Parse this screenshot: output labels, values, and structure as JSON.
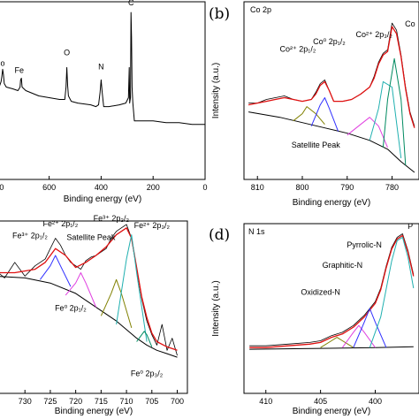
{
  "chart_data": [
    {
      "id": "a",
      "type": "line",
      "panel_label": "",
      "title": "",
      "xlabel": "Binding energy (eV)",
      "ylabel": "",
      "xlim": [
        830,
        0
      ],
      "ylim": [
        0,
        100
      ],
      "xticks": [
        800,
        600,
        400,
        200,
        0
      ],
      "x_tick_labels": [
        "800",
        "600",
        "400",
        "200",
        "0"
      ],
      "series": [
        {
          "name": "",
          "color": "#000000",
          "x": [
            830,
            820,
            800,
            790,
            785,
            782,
            779,
            776,
            773,
            765,
            740,
            720,
            712,
            710,
            707,
            704,
            690,
            640,
            560,
            540,
            535,
            532,
            529,
            526,
            515,
            490,
            440,
            420,
            410,
            404,
            400,
            396,
            390,
            370,
            330,
            305,
            295,
            292,
            290,
            287,
            285,
            283,
            281,
            278,
            272,
            250,
            200,
            150,
            100,
            50,
            0
          ],
          "y": [
            54,
            54,
            53,
            53,
            55,
            58,
            62,
            59,
            54,
            52,
            51,
            50,
            52,
            56,
            57,
            52,
            50,
            47,
            45,
            45,
            52,
            63,
            53,
            47,
            44,
            43,
            42,
            41,
            42,
            49,
            56,
            49,
            41,
            41,
            42,
            43,
            46,
            63,
            43,
            46,
            94,
            80,
            52,
            43,
            33,
            33,
            33,
            32,
            32,
            31,
            31
          ]
        }
      ],
      "annotations": [
        {
          "text": "Co",
          "x": 790,
          "y": 64
        },
        {
          "text": "Fe",
          "x": 715,
          "y": 60
        },
        {
          "text": "O",
          "x": 532,
          "y": 70
        },
        {
          "text": "N",
          "x": 400,
          "y": 62
        },
        {
          "text": "C",
          "x": 285,
          "y": 98
        }
      ]
    },
    {
      "id": "b",
      "type": "line",
      "panel_label": "(b)",
      "title": "Co 2p",
      "xlabel": "Binding energy (eV)",
      "ylabel": "Intensity (a.u.)",
      "xlim": [
        813,
        774
      ],
      "ylim": [
        0,
        100
      ],
      "xticks": [
        810,
        800,
        790,
        780
      ],
      "x_tick_labels": [
        "810",
        "800",
        "790",
        "780"
      ],
      "series": [
        {
          "name": "",
          "role": "raw",
          "color": "#000000",
          "x": [
            812,
            810,
            808,
            806,
            804,
            802,
            800,
            798,
            797,
            796,
            795,
            794,
            793,
            791,
            789,
            787,
            785,
            784,
            783,
            782,
            781,
            780,
            779,
            778,
            777,
            776,
            775
          ],
          "y": [
            43,
            43,
            45,
            46,
            47,
            45,
            44,
            45,
            49,
            54,
            56,
            50,
            44,
            44,
            45,
            48,
            52,
            58,
            66,
            71,
            73,
            88,
            84,
            70,
            52,
            38,
            30
          ]
        },
        {
          "name": "",
          "role": "envelope",
          "color": "#e01010",
          "x": [
            812,
            810,
            808,
            806,
            804,
            802,
            800,
            798,
            797,
            796,
            795,
            794,
            793,
            791,
            789,
            787,
            785,
            784,
            783,
            782,
            781,
            780,
            779,
            778,
            777,
            776,
            775
          ],
          "y": [
            42,
            43,
            44,
            45,
            46,
            45,
            44,
            45,
            48,
            53,
            55,
            50,
            44,
            44,
            45,
            48,
            52,
            57,
            65,
            70,
            72,
            86,
            82,
            69,
            51,
            37,
            29
          ]
        },
        {
          "name": "",
          "role": "background",
          "color": "#000000",
          "x": [
            812,
            805,
            800,
            795,
            790,
            785,
            781,
            778,
            775
          ],
          "y": [
            38,
            35,
            32,
            29,
            26,
            22,
            17,
            10,
            4
          ]
        },
        {
          "name": "",
          "role": "peak",
          "color": "#808000",
          "x": [
            802,
            800,
            799,
            797,
            795
          ],
          "y": [
            33,
            37,
            41,
            37,
            31
          ]
        },
        {
          "name": "",
          "role": "peak",
          "color": "#3030ff",
          "x": [
            798,
            796,
            795,
            794,
            792
          ],
          "y": [
            30,
            42,
            46,
            40,
            27
          ]
        },
        {
          "name": "",
          "role": "peak",
          "color": "#e040e0",
          "x": [
            790,
            787,
            785,
            783,
            781
          ],
          "y": [
            25,
            31,
            35,
            30,
            18
          ]
        },
        {
          "name": "",
          "role": "peak",
          "color": "#20b0b0",
          "x": [
            785,
            783,
            782,
            780,
            778
          ],
          "y": [
            22,
            40,
            55,
            52,
            12
          ]
        },
        {
          "name": "",
          "role": "peak",
          "color": "#008a60",
          "x": [
            782,
            781,
            779.5,
            778,
            777
          ],
          "y": [
            18,
            45,
            68,
            45,
            8
          ]
        }
      ],
      "annotations": [
        {
          "text": "Co²⁺ 2p₁/₂",
          "x": 801,
          "y": 72
        },
        {
          "text": "Co⁰ 2p₁/₂",
          "x": 794,
          "y": 76
        },
        {
          "text": "Co²⁺ 2p₃/₂",
          "x": 784,
          "y": 80
        },
        {
          "text": "Co",
          "x": 776,
          "y": 86
        },
        {
          "text": "Satellite Peak",
          "x": 797,
          "y": 18
        }
      ]
    },
    {
      "id": "c",
      "type": "line",
      "panel_label": "",
      "title": "",
      "xlabel": "Binding energy (eV)",
      "ylabel": "",
      "xlim": [
        737,
        698
      ],
      "ylim": [
        0,
        100
      ],
      "xticks": [
        730,
        725,
        720,
        715,
        710,
        705,
        700
      ],
      "x_tick_labels": [
        "730",
        "725",
        "720",
        "715",
        "710",
        "705",
        "700"
      ],
      "series": [
        {
          "name": "",
          "role": "raw",
          "color": "#000000",
          "x": [
            736,
            734,
            732,
            730,
            728,
            726,
            725,
            724,
            723,
            722,
            721,
            720,
            719,
            718,
            717,
            716,
            715,
            714,
            713,
            712,
            711,
            710,
            709,
            708,
            707,
            706,
            705,
            704,
            703,
            702,
            701,
            700
          ],
          "y": [
            72,
            67,
            76,
            68,
            74,
            78,
            84,
            90,
            86,
            80,
            76,
            74,
            72,
            77,
            79,
            80,
            82,
            84,
            90,
            94,
            96,
            98,
            90,
            72,
            55,
            42,
            34,
            28,
            40,
            25,
            32,
            22
          ]
        },
        {
          "name": "",
          "role": "envelope",
          "color": "#e01010",
          "x": [
            736,
            732,
            728,
            726,
            724,
            722,
            720,
            718,
            716,
            714,
            712,
            710,
            709,
            708,
            707,
            706,
            705,
            704,
            702,
            700
          ],
          "y": [
            70,
            70,
            72,
            76,
            84,
            80,
            73,
            76,
            80,
            85,
            92,
            96,
            90,
            73,
            56,
            44,
            35,
            30,
            27,
            25
          ]
        },
        {
          "name": "",
          "role": "background",
          "color": "#000000",
          "x": [
            736,
            730,
            725,
            720,
            715,
            712,
            710,
            708,
            706,
            704,
            702,
            700
          ],
          "y": [
            68,
            67,
            64,
            58,
            48,
            42,
            37,
            32,
            28,
            25,
            23,
            21
          ]
        },
        {
          "name": "",
          "role": "peak",
          "color": "#3030ff",
          "x": [
            727,
            725,
            724,
            723,
            721
          ],
          "y": [
            66,
            74,
            80,
            74,
            62
          ]
        },
        {
          "name": "",
          "role": "peak",
          "color": "#e040e0",
          "x": [
            722,
            720,
            719,
            718,
            716
          ],
          "y": [
            57,
            64,
            70,
            64,
            50
          ]
        },
        {
          "name": "",
          "role": "peak",
          "color": "#808000",
          "x": [
            715,
            713,
            712,
            711,
            709
          ],
          "y": [
            45,
            58,
            66,
            58,
            38
          ]
        },
        {
          "name": "",
          "role": "peak",
          "color": "#20b0b0",
          "x": [
            712,
            710,
            709,
            708,
            706
          ],
          "y": [
            40,
            78,
            92,
            70,
            30
          ]
        },
        {
          "name": "",
          "role": "peak",
          "color": "#008a60",
          "x": [
            708,
            707,
            706.5,
            706,
            705
          ],
          "y": [
            30,
            34,
            36,
            34,
            27
          ]
        }
      ],
      "annotations": [
        {
          "text": "Fe³⁺ 2p₁/₂",
          "x": 729,
          "y": 90
        },
        {
          "text": "Fe²⁺ 2p₁/₂",
          "x": 723,
          "y": 97
        },
        {
          "text": "Fe³⁺ 2p₃/₂",
          "x": 713,
          "y": 100
        },
        {
          "text": "Fe²⁺ 2p₃/₂",
          "x": 705,
          "y": 96
        },
        {
          "text": "Satellite Peak",
          "x": 717,
          "y": 89
        },
        {
          "text": "Fe⁰ 2p₁/₂",
          "x": 721,
          "y": 48
        },
        {
          "text": "Fe⁰ 2p₃/₂",
          "x": 706,
          "y": 10
        }
      ]
    },
    {
      "id": "d",
      "type": "line",
      "panel_label": "(d)",
      "title": "N 1s",
      "xlabel": "Binding energy (eV)",
      "ylabel": "Intensity (a.u.)",
      "xlim": [
        412,
        396
      ],
      "ylim": [
        0,
        100
      ],
      "xticks": [
        410,
        405,
        400
      ],
      "x_tick_labels": [
        "410",
        "405",
        "400"
      ],
      "series": [
        {
          "name": "",
          "role": "raw",
          "color": "#000000",
          "x": [
            411.5,
            410,
            408,
            406,
            405,
            404,
            403,
            402,
            401,
            400.5,
            400,
            399.5,
            399,
            398.5,
            398,
            397.5,
            397,
            396.5
          ],
          "y": [
            28,
            28,
            29,
            30,
            31,
            34,
            36,
            40,
            46,
            50,
            54,
            62,
            75,
            86,
            92,
            94,
            84,
            70
          ]
        },
        {
          "name": "",
          "role": "envelope",
          "color": "#e01010",
          "x": [
            411.5,
            410,
            408,
            406,
            405,
            404,
            403,
            402,
            401,
            400.5,
            400,
            399.5,
            399,
            398.5,
            398,
            397.5,
            397,
            396.5
          ],
          "y": [
            27,
            27,
            28,
            29,
            30,
            33,
            35,
            39,
            45,
            49,
            53,
            61,
            74,
            85,
            91,
            93,
            83,
            69
          ]
        },
        {
          "name": "",
          "role": "background",
          "color": "#000000",
          "x": [
            411.5,
            405,
            400,
            396.5
          ],
          "y": [
            26,
            26.5,
            27,
            27.5
          ]
        },
        {
          "name": "",
          "role": "peak",
          "color": "#808000",
          "x": [
            405,
            404,
            403.5,
            403,
            402
          ],
          "y": [
            27,
            31,
            33,
            31,
            27
          ]
        },
        {
          "name": "",
          "role": "peak",
          "color": "#e040e0",
          "x": [
            403,
            402,
            401.5,
            401,
            400
          ],
          "y": [
            27,
            36,
            40,
            36,
            27
          ]
        },
        {
          "name": "",
          "role": "peak",
          "color": "#3030ff",
          "x": [
            402,
            401,
            400.5,
            400,
            399
          ],
          "y": [
            27,
            42,
            50,
            42,
            27
          ]
        },
        {
          "name": "",
          "role": "peak",
          "color": "#20b0b0",
          "x": [
            400.5,
            399.5,
            398.5,
            398,
            397.5,
            397,
            396.5
          ],
          "y": [
            27,
            45,
            78,
            90,
            92,
            80,
            62
          ]
        }
      ],
      "annotations": [
        {
          "text": "Oxidized-N",
          "x": 405,
          "y": 58
        },
        {
          "text": "Graphitic-N",
          "x": 403,
          "y": 74
        },
        {
          "text": "Pyrrolic-N",
          "x": 401,
          "y": 86
        },
        {
          "text": "P",
          "x": 396.8,
          "y": 97
        }
      ]
    }
  ]
}
